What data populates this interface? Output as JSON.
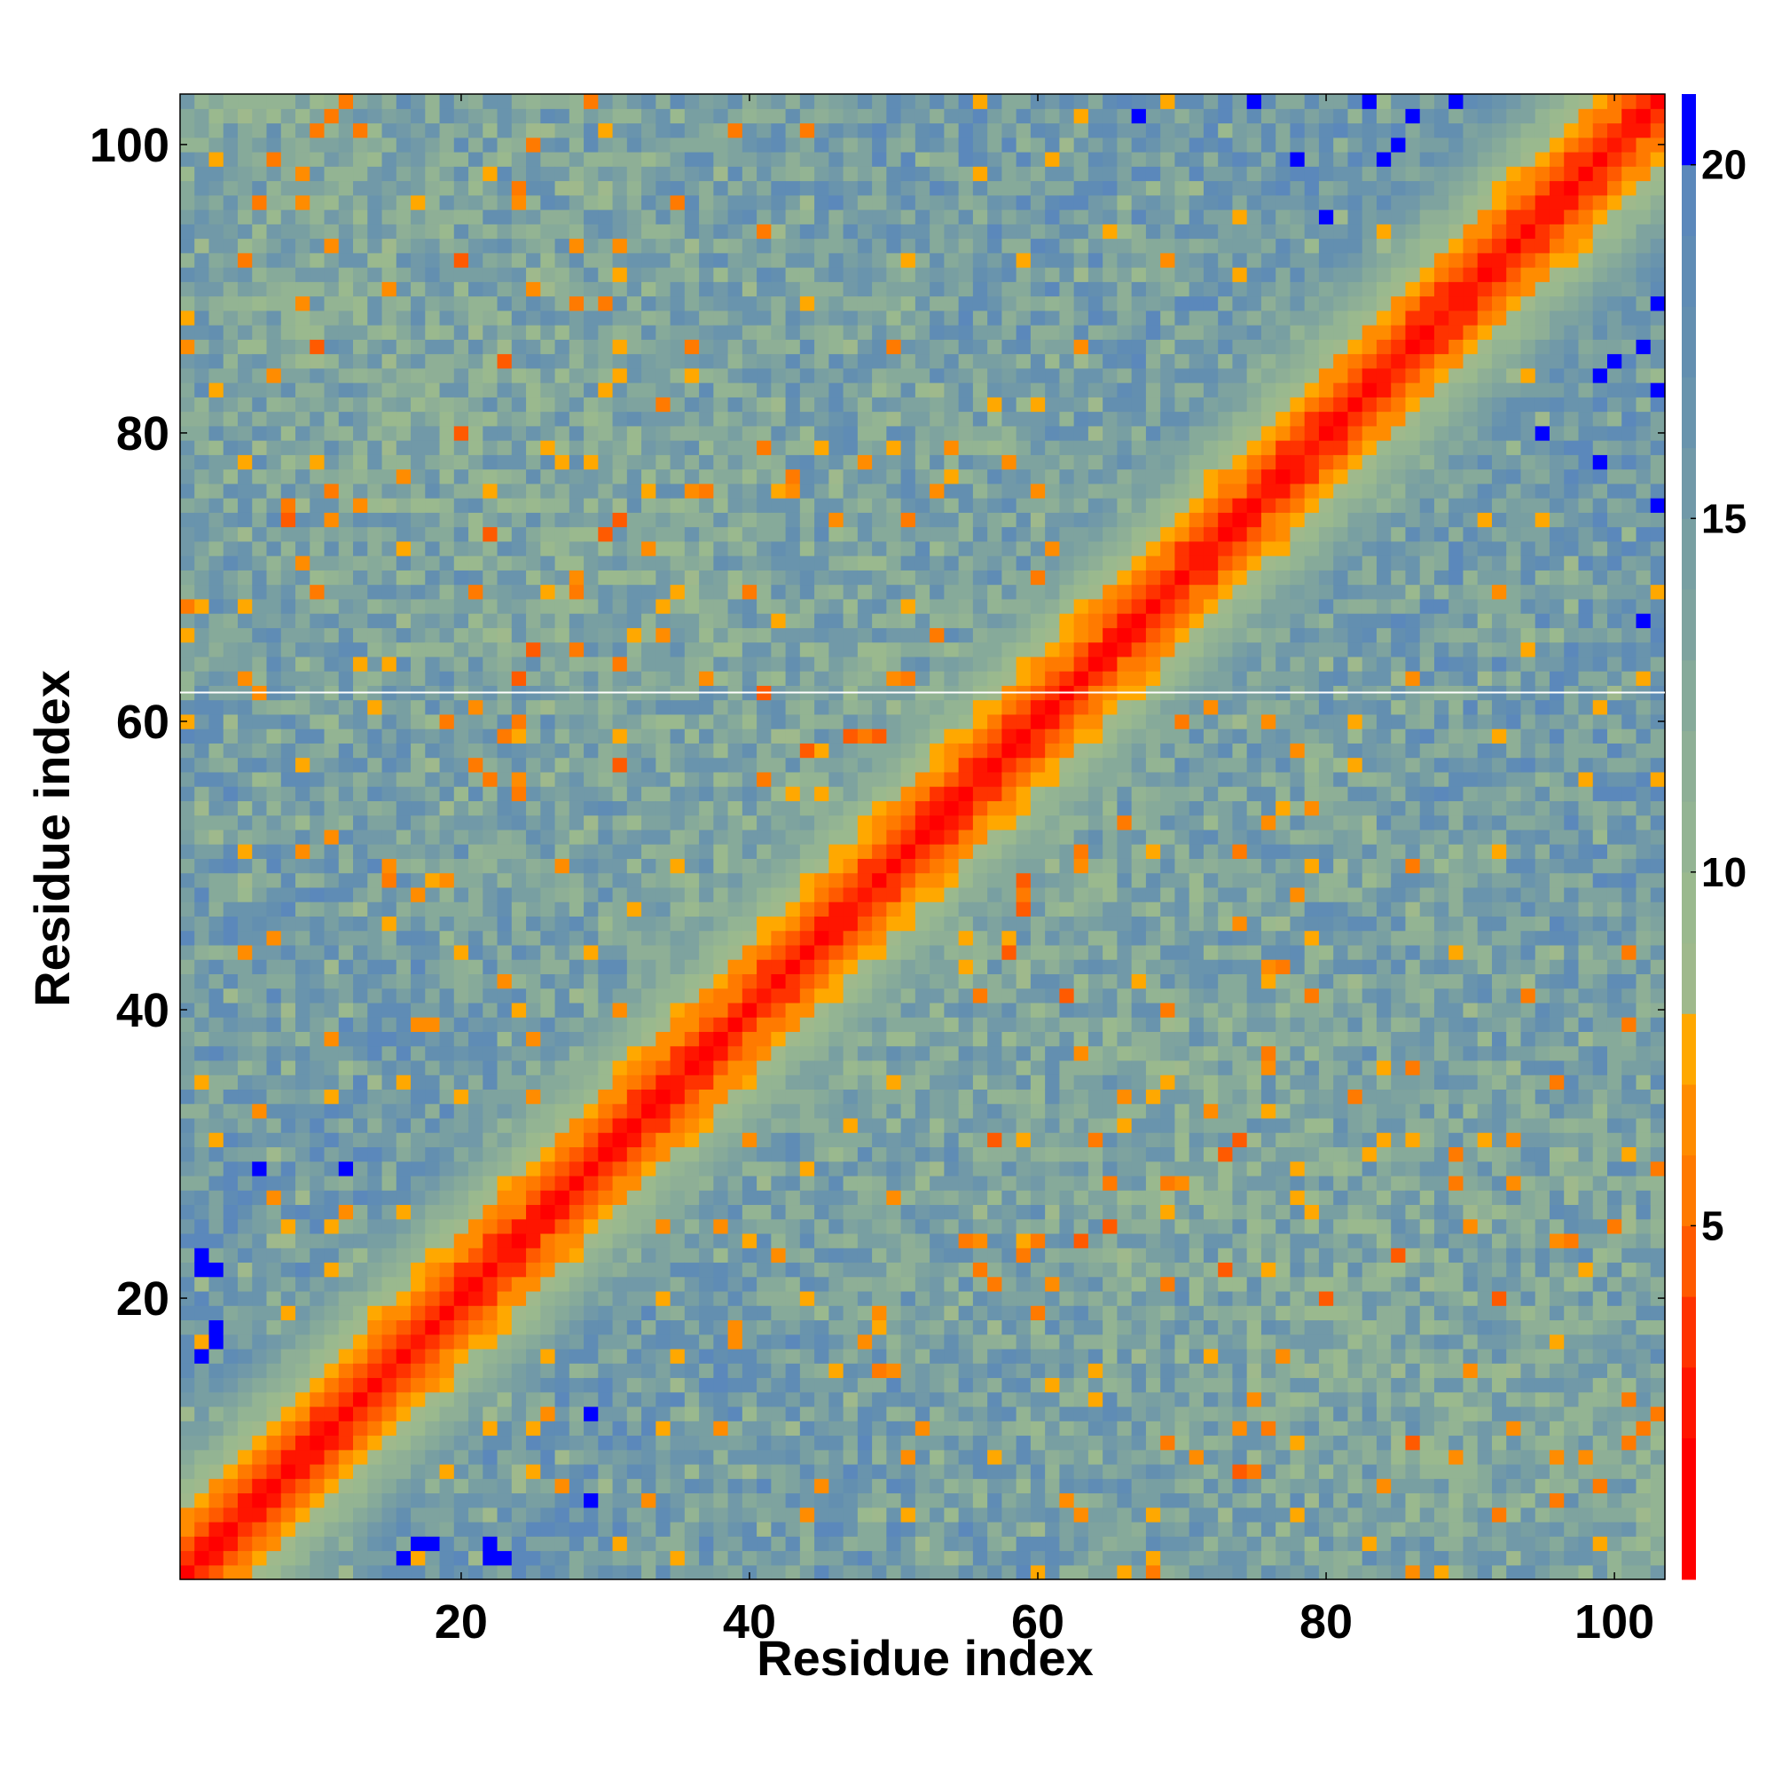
{
  "chart_data": {
    "type": "heatmap",
    "title": "",
    "xlabel": "Residue index",
    "ylabel": "Residue index",
    "x_range": [
      1,
      103
    ],
    "y_range": [
      1,
      103
    ],
    "x_ticks": [
      20,
      40,
      60,
      80,
      100
    ],
    "y_ticks": [
      20,
      40,
      60,
      80,
      100
    ],
    "x_tick_labels": [
      "20",
      "40",
      "60",
      "80",
      "100"
    ],
    "y_tick_labels": [
      "20",
      "40",
      "60",
      "80",
      "100"
    ],
    "grid": false,
    "colorbar": {
      "location": "right",
      "range": [
        0,
        21
      ],
      "ticks": [
        5,
        10,
        15,
        20
      ],
      "tick_labels": [
        "5",
        "10",
        "15",
        "20"
      ],
      "bands": [
        {
          "upto": 2,
          "color": "#ff0000"
        },
        {
          "upto": 3,
          "color": "#ff1500"
        },
        {
          "upto": 4,
          "color": "#ff3300"
        },
        {
          "upto": 5,
          "color": "#ff5a00"
        },
        {
          "upto": 6,
          "color": "#ff7a00"
        },
        {
          "upto": 7,
          "color": "#ff8c00"
        },
        {
          "upto": 8,
          "color": "#ffa800"
        },
        {
          "upto": 9,
          "color": "#9fb98c"
        },
        {
          "upto": 10,
          "color": "#9ab98e"
        },
        {
          "upto": 11,
          "color": "#93b493"
        },
        {
          "upto": 12,
          "color": "#8eaf96"
        },
        {
          "upto": 13,
          "color": "#86aa9a"
        },
        {
          "upto": 14,
          "color": "#7ea39f"
        },
        {
          "upto": 15,
          "color": "#789fa2"
        },
        {
          "upto": 16,
          "color": "#7199a8"
        },
        {
          "upto": 17,
          "color": "#6994ad"
        },
        {
          "upto": 18,
          "color": "#638fb0"
        },
        {
          "upto": 19,
          "color": "#5f8cb5"
        },
        {
          "upto": 20,
          "color": "#5b88bb"
        },
        {
          "upto": 21,
          "color": "#0000ff"
        }
      ]
    },
    "description_of_structure": "Symmetric residue distance map: red/orange main diagonal band, greenish-blue shoulders, broad speckled anti-diagonal off-diagonal contact band crossing near residue 33 and 67, blue (>20) background; thin white horizontal separator line at residue 62."
  },
  "colors": {
    "far": "#0000ff",
    "near": "#ff0000",
    "mid": "#ff8c00",
    "shoulder": "#93b493",
    "outer": "#5b88bb"
  }
}
